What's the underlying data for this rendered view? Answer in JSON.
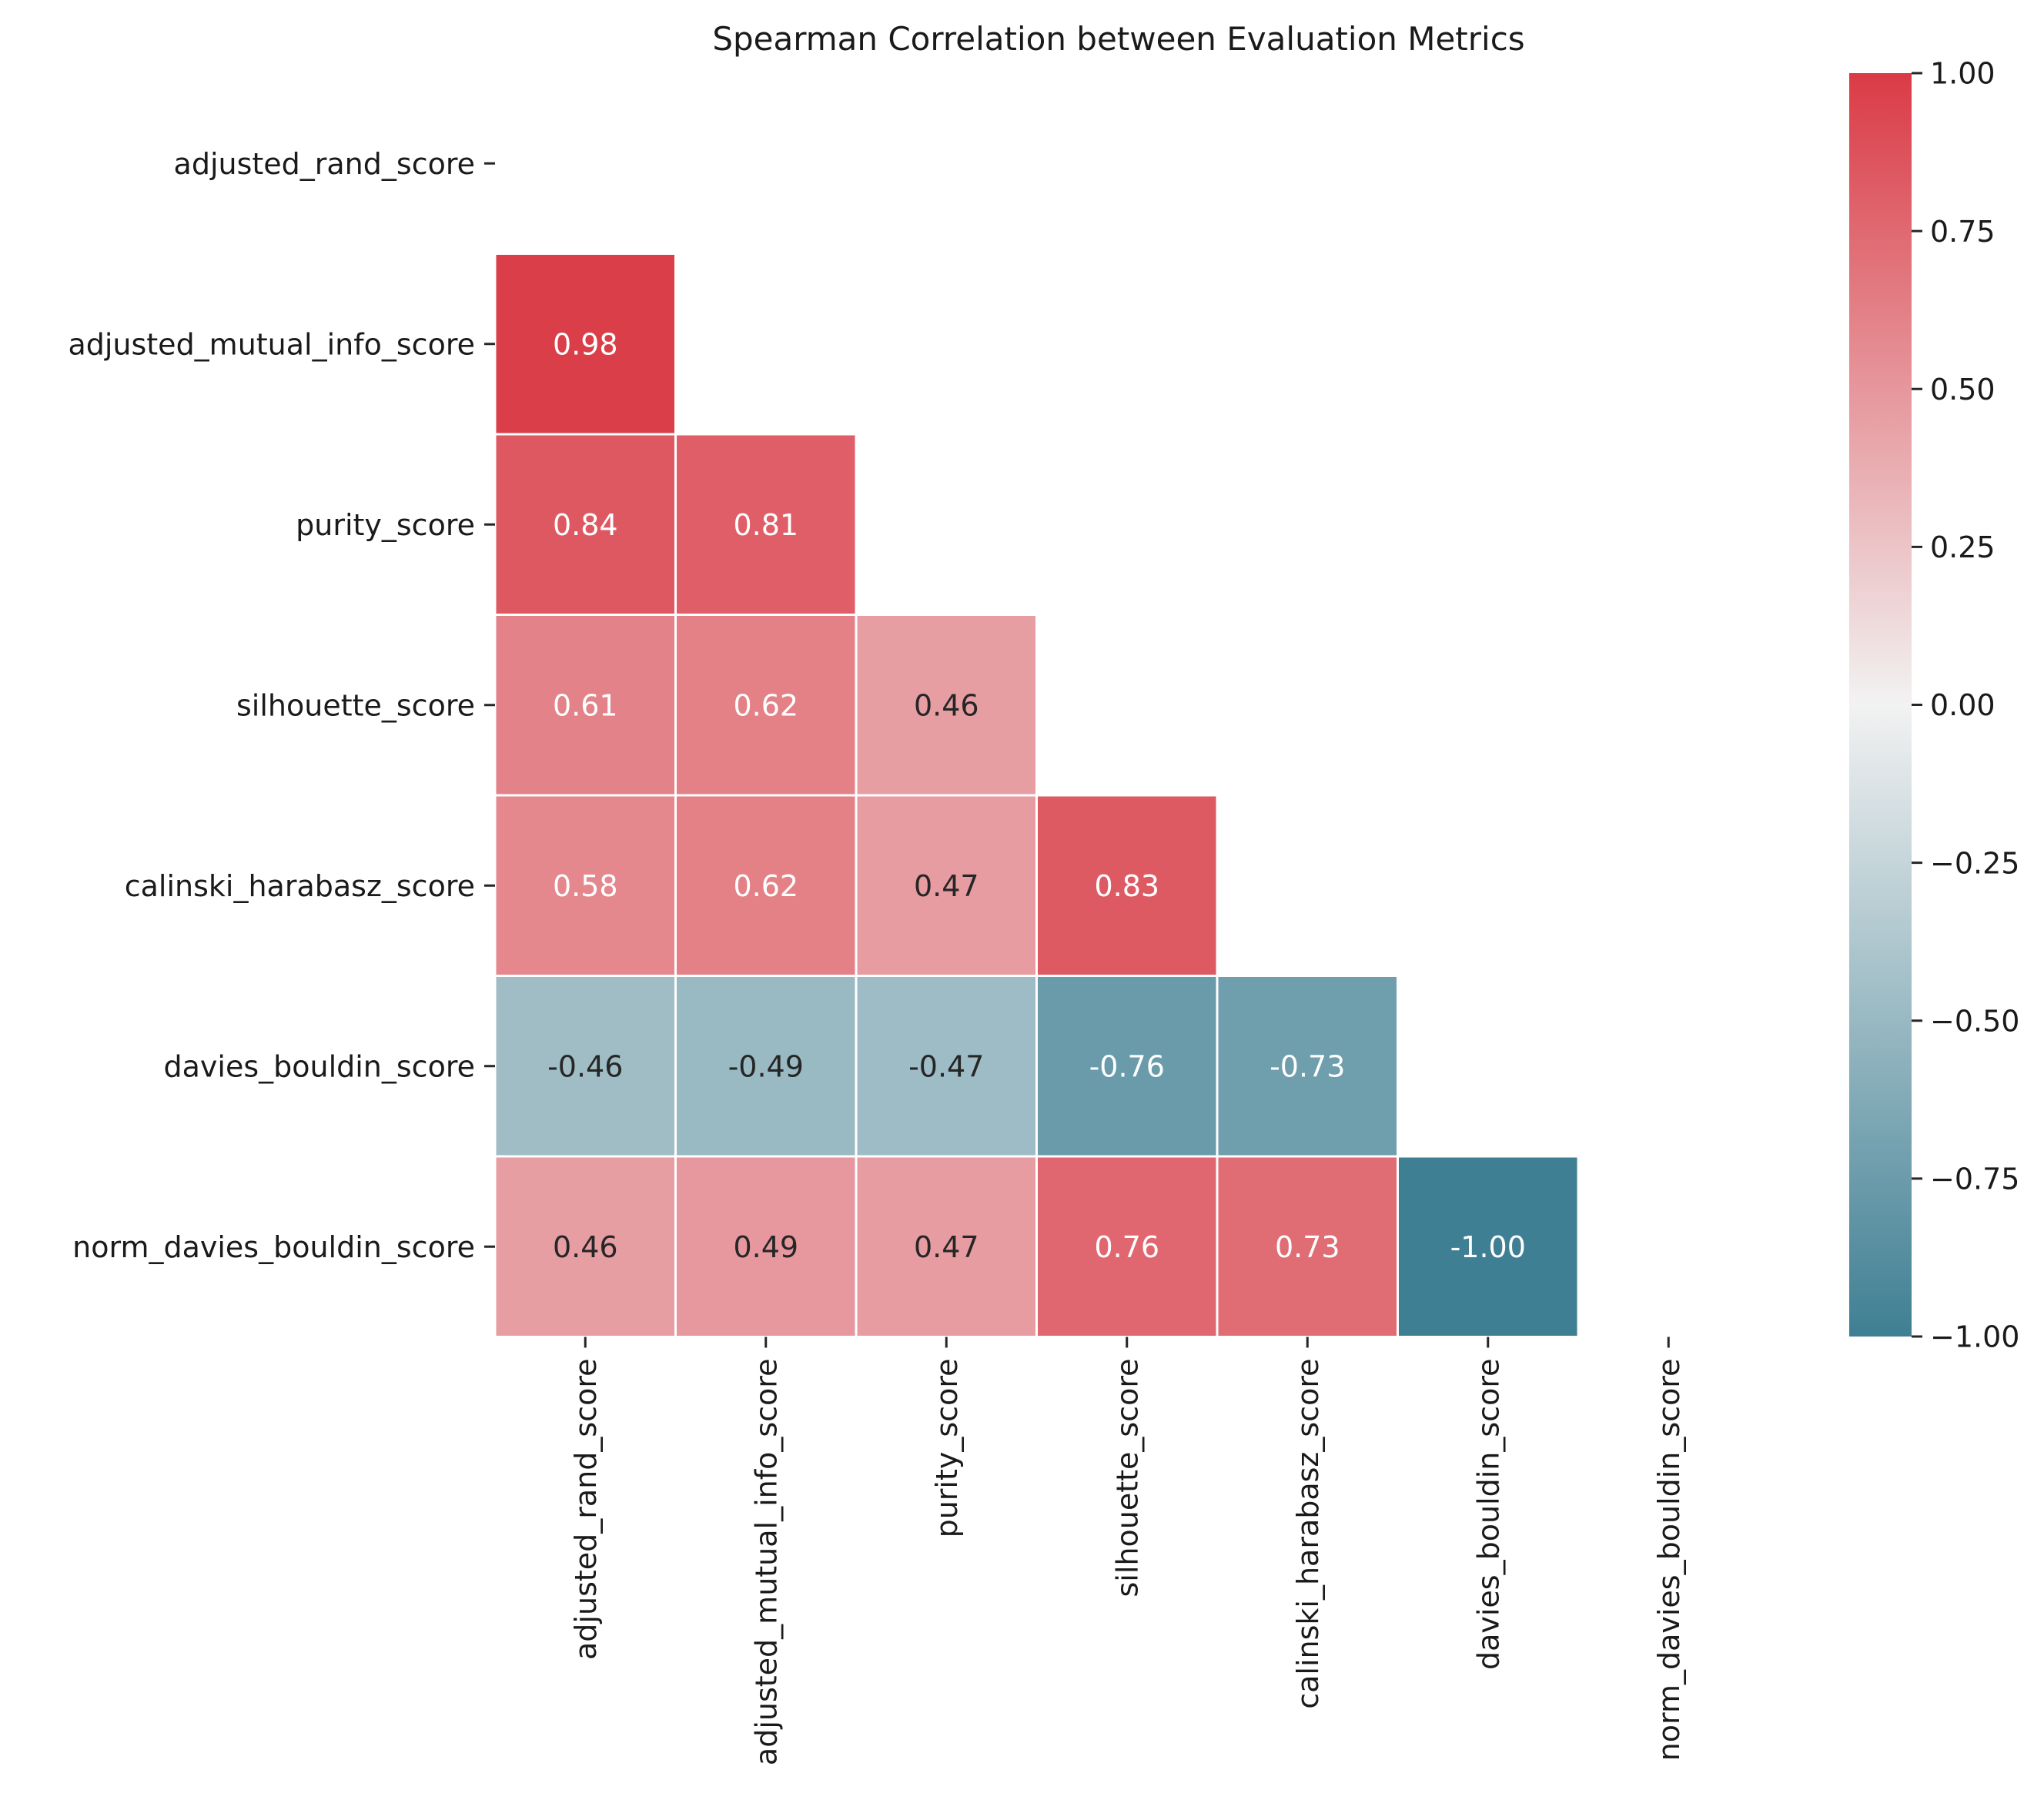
{
  "chart_data": {
    "type": "heatmap",
    "title": "Spearman Correlation between Evaluation Metrics",
    "labels": [
      "adjusted_rand_score",
      "adjusted_mutual_info_score",
      "purity_score",
      "silhouette_score",
      "calinski_harabasz_score",
      "davies_bouldin_score",
      "norm_davies_bouldin_score"
    ],
    "mask": "upper-triangle-including-diagonal",
    "cells": [
      {
        "row": 1,
        "col": 0,
        "value": 0.98,
        "label": "0.98"
      },
      {
        "row": 2,
        "col": 0,
        "value": 0.84,
        "label": "0.84"
      },
      {
        "row": 2,
        "col": 1,
        "value": 0.81,
        "label": "0.81"
      },
      {
        "row": 3,
        "col": 0,
        "value": 0.61,
        "label": "0.61"
      },
      {
        "row": 3,
        "col": 1,
        "value": 0.62,
        "label": "0.62"
      },
      {
        "row": 3,
        "col": 2,
        "value": 0.46,
        "label": "0.46"
      },
      {
        "row": 4,
        "col": 0,
        "value": 0.58,
        "label": "0.58"
      },
      {
        "row": 4,
        "col": 1,
        "value": 0.62,
        "label": "0.62"
      },
      {
        "row": 4,
        "col": 2,
        "value": 0.47,
        "label": "0.47"
      },
      {
        "row": 4,
        "col": 3,
        "value": 0.83,
        "label": "0.83"
      },
      {
        "row": 5,
        "col": 0,
        "value": -0.46,
        "label": "-0.46"
      },
      {
        "row": 5,
        "col": 1,
        "value": -0.49,
        "label": "-0.49"
      },
      {
        "row": 5,
        "col": 2,
        "value": -0.47,
        "label": "-0.47"
      },
      {
        "row": 5,
        "col": 3,
        "value": -0.76,
        "label": "-0.76"
      },
      {
        "row": 5,
        "col": 4,
        "value": -0.73,
        "label": "-0.73"
      },
      {
        "row": 6,
        "col": 0,
        "value": 0.46,
        "label": "0.46"
      },
      {
        "row": 6,
        "col": 1,
        "value": 0.49,
        "label": "0.49"
      },
      {
        "row": 6,
        "col": 2,
        "value": 0.47,
        "label": "0.47"
      },
      {
        "row": 6,
        "col": 3,
        "value": 0.76,
        "label": "0.76"
      },
      {
        "row": 6,
        "col": 4,
        "value": 0.73,
        "label": "0.73"
      },
      {
        "row": 6,
        "col": 5,
        "value": -1.0,
        "label": "-1.00"
      }
    ],
    "colorbar": {
      "range": [
        -1.0,
        1.0
      ],
      "ticks": [
        1.0,
        0.75,
        0.5,
        0.25,
        0.0,
        -0.25,
        -0.5,
        -0.75,
        -1.0
      ],
      "tick_labels": [
        "1.00",
        "0.75",
        "0.50",
        "0.25",
        "0.00",
        "−0.25",
        "−0.50",
        "−0.75",
        "−1.00"
      ],
      "colors": {
        "low": "#3f7f93",
        "mid": "#f2f2f2",
        "high": "#da3b46"
      }
    },
    "grid": false,
    "legend": "colorbar-right"
  }
}
